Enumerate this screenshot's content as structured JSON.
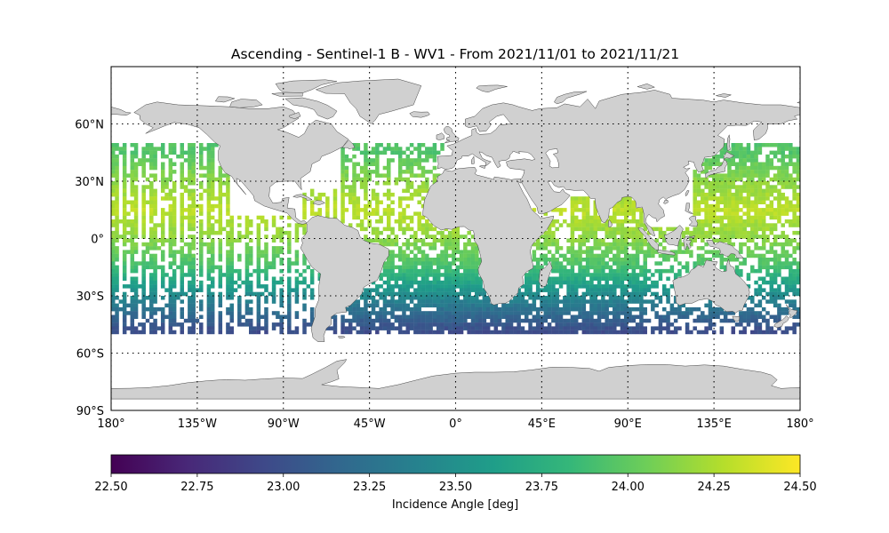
{
  "title": "Ascending - Sentinel-1 B - WV1 - From 2021/11/01 to 2021/11/21",
  "map": {
    "projection": "equirectangular",
    "lon_range": [
      -180,
      180
    ],
    "lat_range": [
      -90,
      90
    ],
    "land_color": "#d0d0d0",
    "coast_color": "#444444",
    "gridlines": "dotted",
    "lat_ticks": [
      {
        "value": 60,
        "label": "60°N"
      },
      {
        "value": 30,
        "label": "30°N"
      },
      {
        "value": 0,
        "label": "0°"
      },
      {
        "value": -30,
        "label": "30°S"
      },
      {
        "value": -60,
        "label": "60°S"
      },
      {
        "value": -90,
        "label": "90°S"
      }
    ],
    "lon_ticks": [
      {
        "value": -180,
        "label": "180°"
      },
      {
        "value": -135,
        "label": "135°W"
      },
      {
        "value": -90,
        "label": "90°W"
      },
      {
        "value": -45,
        "label": "45°W"
      },
      {
        "value": 0,
        "label": "0°"
      },
      {
        "value": 45,
        "label": "45°E"
      },
      {
        "value": 90,
        "label": "90°E"
      },
      {
        "value": 135,
        "label": "135°E"
      },
      {
        "value": 180,
        "label": "180°"
      }
    ]
  },
  "chart_data": {
    "type": "heatmap",
    "title": "Ascending - Sentinel-1 B - WV1 - From 2021/11/01 to 2021/11/21",
    "variable": "Incidence Angle [deg]",
    "colormap": "viridis",
    "value_range": [
      22.5,
      24.5
    ],
    "lat_coverage": [
      -50,
      50
    ],
    "approx_value_by_latitude": [
      {
        "lat": 45,
        "value": 23.95
      },
      {
        "lat": 30,
        "value": 24.15
      },
      {
        "lat": 15,
        "value": 24.3
      },
      {
        "lat": 0,
        "value": 24.15
      },
      {
        "lat": -15,
        "value": 23.9
      },
      {
        "lat": -25,
        "value": 23.6
      },
      {
        "lat": -35,
        "value": 23.3
      },
      {
        "lat": -45,
        "value": 23.05
      },
      {
        "lat": -50,
        "value": 22.95
      }
    ]
  },
  "colorbar": {
    "label": "Incidence Angle [deg]",
    "ticks": [
      {
        "value": 22.5,
        "label": "22.50"
      },
      {
        "value": 22.75,
        "label": "22.75"
      },
      {
        "value": 23.0,
        "label": "23.00"
      },
      {
        "value": 23.25,
        "label": "23.25"
      },
      {
        "value": 23.5,
        "label": "23.50"
      },
      {
        "value": 23.75,
        "label": "23.75"
      },
      {
        "value": 24.0,
        "label": "24.00"
      },
      {
        "value": 24.25,
        "label": "24.25"
      },
      {
        "value": 24.5,
        "label": "24.50"
      }
    ],
    "colors": [
      "#440154",
      "#482878",
      "#3e4989",
      "#31688e",
      "#26828e",
      "#1f9e89",
      "#35b779",
      "#6ece58",
      "#b5de2b",
      "#fde725"
    ]
  }
}
